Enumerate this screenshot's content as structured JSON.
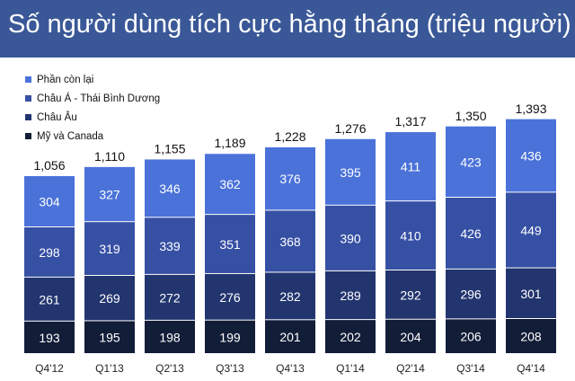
{
  "title": "Số người dùng tích cực hằng tháng (triệu người)",
  "colors": {
    "header_bg": "#3a5897",
    "rest": "#4a72d9",
    "apac": "#3650a4",
    "europe": "#22356f",
    "us_canada": "#121d38"
  },
  "chart_data": {
    "type": "bar",
    "stacked": true,
    "categories": [
      "Q4'12",
      "Q1'13",
      "Q2'13",
      "Q3'13",
      "Q4'13",
      "Q1'14",
      "Q2'14",
      "Q3'14",
      "Q4'14"
    ],
    "totals": [
      1056,
      1110,
      1155,
      1189,
      1228,
      1276,
      1317,
      1350,
      1393
    ],
    "series": [
      {
        "name": "Mỹ và Canada",
        "values": [
          193,
          195,
          198,
          199,
          201,
          202,
          204,
          206,
          208
        ]
      },
      {
        "name": "Châu Âu",
        "values": [
          261,
          269,
          272,
          276,
          282,
          289,
          292,
          296,
          301
        ]
      },
      {
        "name": "Châu Á - Thái Bình Dương",
        "values": [
          298,
          319,
          339,
          351,
          368,
          390,
          410,
          426,
          449
        ]
      },
      {
        "name": "Phần còn lại",
        "values": [
          304,
          327,
          346,
          362,
          376,
          395,
          411,
          423,
          436
        ]
      }
    ],
    "total_labels": [
      "1,056",
      "1,110",
      "1,155",
      "1,189",
      "1,228",
      "1,276",
      "1,317",
      "1,350",
      "1,393"
    ],
    "legend_order": [
      "Phần còn lại",
      "Châu Á - Thái Bình Dương",
      "Châu Âu",
      "Mỹ và Canada"
    ],
    "legend_position": "top-left",
    "ylim": [
      0,
      1500
    ],
    "grid": false
  }
}
